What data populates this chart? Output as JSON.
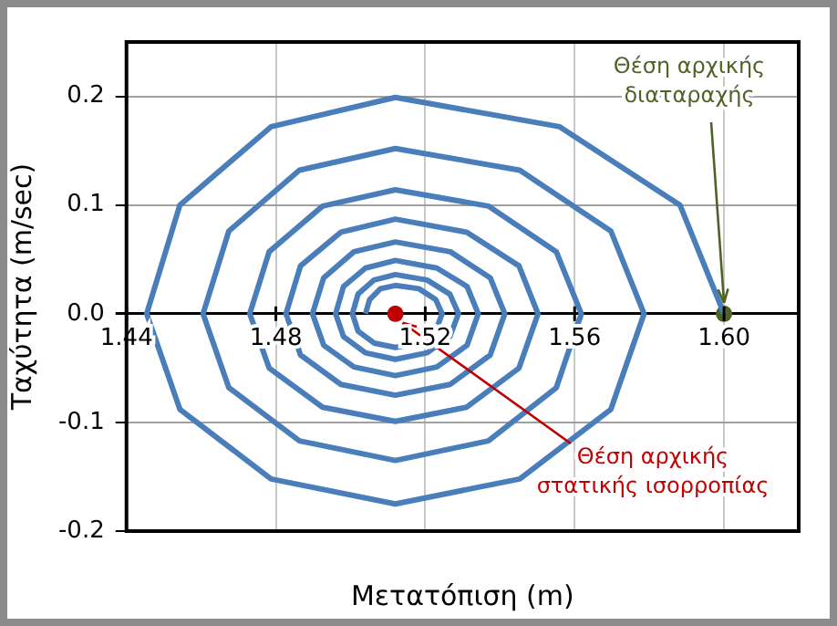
{
  "chart_data": {
    "type": "line",
    "xlabel": "Μετατόπιση (m)",
    "ylabel": "Ταχύτητα (m/sec)",
    "xlim": [
      1.44,
      1.62
    ],
    "xticks": [
      1.44,
      1.48,
      1.52,
      1.56,
      {
        "value": 1.6,
        "label": "1.60"
      }
    ],
    "ylim": [
      -0.2,
      0.25
    ],
    "yticks": [
      -0.2,
      -0.1,
      {
        "value": 0,
        "label": "0.0"
      },
      0.1,
      0.2
    ],
    "grid": true,
    "legend": false,
    "marker": "none",
    "line_style": "solid",
    "series": [
      {
        "color": "#4a7ebb",
        "x": [
          1.6,
          1.5882,
          1.556,
          1.512,
          1.4787,
          1.4543,
          1.4454,
          1.4543,
          1.4787,
          1.512,
          1.5453,
          1.5697,
          1.5786,
          1.5697,
          1.5453,
          1.512,
          1.4863,
          1.4674,
          1.4605,
          1.4674,
          1.4863,
          1.512,
          1.5369,
          1.5551,
          1.5618,
          1.5551,
          1.5369,
          1.512,
          1.4925,
          1.4782,
          1.473,
          1.4782,
          1.4925,
          1.512,
          1.5311,
          1.5451,
          1.5502,
          1.5451,
          1.5311,
          1.512,
          1.4974,
          1.4866,
          1.4827,
          1.4866,
          1.4974,
          1.512,
          1.5267,
          1.5374,
          1.5413,
          1.5374,
          1.5267,
          1.512,
          1.5009,
          1.4928,
          1.4898,
          1.4928,
          1.5009,
          1.512,
          1.5231,
          1.5312,
          1.5342,
          1.5312,
          1.5231,
          1.512,
          1.504,
          1.4981,
          1.496,
          1.4981,
          1.504,
          1.512,
          1.5205,
          1.5266,
          1.5289,
          1.5266,
          1.5205,
          1.512,
          1.5063,
          1.502,
          1.5005,
          1.502,
          1.5063,
          1.512,
          1.5183,
          1.5228,
          1.5245,
          1.5228,
          1.5183,
          1.512,
          1.508,
          1.5051,
          1.504
        ],
        "values": [
          0,
          0.1,
          0.172,
          0.199,
          0.172,
          0.1,
          0,
          -0.088,
          -0.152,
          -0.175,
          -0.152,
          -0.088,
          0,
          0.076,
          0.132,
          0.152,
          0.132,
          0.076,
          0,
          -0.068,
          -0.117,
          -0.135,
          -0.117,
          -0.068,
          0,
          0.057,
          0.099,
          0.114,
          0.099,
          0.057,
          0,
          -0.05,
          -0.086,
          -0.099,
          -0.086,
          -0.05,
          0,
          0.044,
          0.075,
          0.087,
          0.075,
          0.044,
          0,
          -0.038,
          -0.065,
          -0.075,
          -0.065,
          -0.038,
          0,
          0.033,
          0.057,
          0.066,
          0.057,
          0.033,
          0,
          -0.029,
          -0.049,
          -0.057,
          -0.049,
          -0.029,
          0,
          0.025,
          0.042,
          0.049,
          0.042,
          0.025,
          0,
          -0.021,
          -0.036,
          -0.042,
          -0.036,
          -0.021,
          0,
          0.018,
          0.031,
          0.036,
          0.031,
          0.018,
          0,
          -0.016,
          -0.027,
          -0.031,
          -0.027,
          -0.016,
          0,
          0.013,
          0.023,
          0.026,
          0.023,
          0.013,
          0
        ]
      },
      {
        "type": "scatter",
        "color": "#4f6228",
        "x": [
          1.6
        ],
        "values": [
          0
        ],
        "marker": "circle"
      },
      {
        "type": "scatter",
        "color": "#c00000",
        "x": [
          1.512
        ],
        "values": [
          0
        ],
        "marker": "circle"
      }
    ],
    "annotations": [
      {
        "text": "Θέση αρχικής\nδιαταραχής",
        "x": 1.6,
        "y": 0
      },
      {
        "text": "Θέση αρχικής\nστατικής ισορροπίας",
        "x": 1.512,
        "y": 0
      }
    ]
  }
}
